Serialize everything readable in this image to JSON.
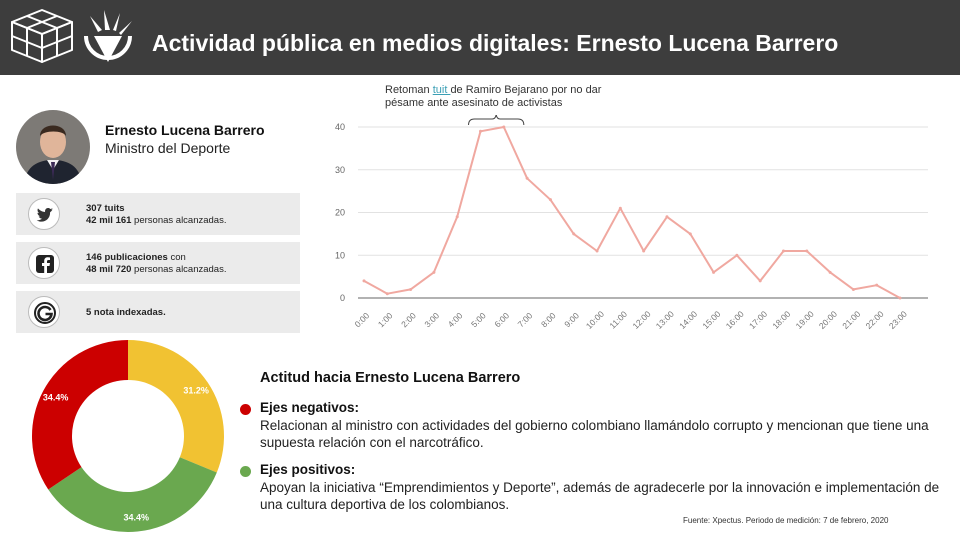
{
  "header": {
    "title": "Actividad pública en medios digitales: Ernesto Lucena Barrero",
    "background": "#3d3d3d"
  },
  "profile": {
    "name": "Ernesto Lucena Barrero",
    "role": "Ministro del Deporte"
  },
  "stats": {
    "twitter": {
      "icon": "twitter-icon",
      "count_label": "307 tuits",
      "reach_bold": "42 mil 161",
      "reach_rest": " personas alcanzadas."
    },
    "facebook": {
      "icon": "facebook-icon",
      "count_bold": "146 publicaciones",
      "count_rest": " con",
      "reach_bold": "48 mil 720",
      "reach_rest": " personas alcanzadas."
    },
    "google": {
      "icon": "google-icon",
      "label": "5 nota indexadas."
    }
  },
  "annotation": {
    "before": "Retoman ",
    "link": "tuit ",
    "after": "de Ramiro Bejarano por no dar pésame ante asesinato de activistas"
  },
  "chart_data": [
    {
      "type": "line",
      "x": [
        "0:00",
        "1:00",
        "2:00",
        "3:00",
        "4:00",
        "5:00",
        "6:00",
        "7:00",
        "8:00",
        "9:00",
        "10:00",
        "11:00",
        "12:00",
        "13:00",
        "14:00",
        "15:00",
        "16:00",
        "17:00",
        "18:00",
        "19:00",
        "20:00",
        "21:00",
        "22:00",
        "23:00"
      ],
      "series": [
        {
          "values": [
            4,
            1,
            2,
            6,
            19,
            39,
            40,
            28,
            23,
            15,
            11,
            21,
            11,
            19,
            15,
            6,
            10,
            4,
            11,
            11,
            6,
            2,
            3,
            0
          ],
          "color": "#f0a8a0"
        }
      ],
      "yticks": [
        0,
        10,
        20,
        30,
        40
      ],
      "ylim": [
        0,
        40
      ],
      "grid": true
    },
    {
      "type": "pie",
      "donut": true,
      "slices": [
        {
          "label": "31.2%",
          "value": 31.2,
          "color": "#f1c232"
        },
        {
          "label": "34.4%",
          "value": 34.4,
          "color": "#6aa84f"
        },
        {
          "label": "34.4%",
          "value": 34.4,
          "color": "#cc0000"
        }
      ]
    }
  ],
  "attitude": {
    "title": "Actitud hacia Ernesto Lucena Barrero",
    "negative": {
      "color": "#cc0000",
      "title": "Ejes negativos:",
      "text": "Relacionan al ministro con actividades del gobierno colombiano llamándolo corrupto y mencionan que tiene una supuesta relación con el narcotráfico."
    },
    "positive": {
      "color": "#6aa84f",
      "title": "Ejes positivos:",
      "text": "Apoyan la iniciativa “Emprendimientos y Deporte”, además de agradecerle por la innovación e implementación de una cultura deportiva de los colombianos."
    }
  },
  "source": "Fuente: Xpectus. Periodo de medición:  7 de febrero, 2020"
}
